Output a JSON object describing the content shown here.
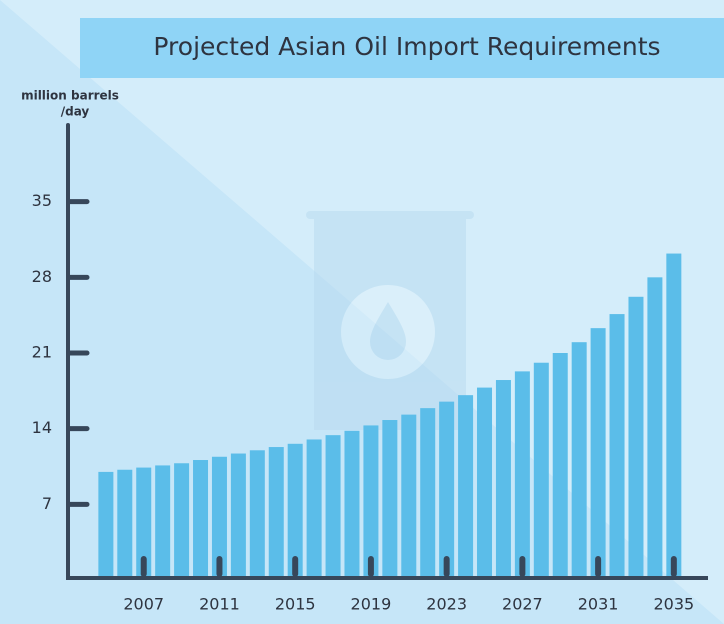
{
  "chart_data": {
    "type": "bar",
    "title": "Projected Asian Oil Import Requirements",
    "y_label": [
      "million barrels",
      "/day"
    ],
    "x": [
      2005,
      2006,
      2007,
      2008,
      2009,
      2010,
      2011,
      2012,
      2013,
      2014,
      2015,
      2016,
      2017,
      2018,
      2019,
      2020,
      2021,
      2022,
      2023,
      2024,
      2025,
      2026,
      2027,
      2028,
      2029,
      2030,
      2031,
      2032,
      2033,
      2034,
      2035
    ],
    "values": [
      10.0,
      10.2,
      10.4,
      10.6,
      10.8,
      11.1,
      11.4,
      11.7,
      12.0,
      12.3,
      12.6,
      13.0,
      13.4,
      13.8,
      14.3,
      14.8,
      15.3,
      15.9,
      16.5,
      17.1,
      17.8,
      18.5,
      19.3,
      20.1,
      21.0,
      22.0,
      23.3,
      24.6,
      26.2,
      28.0,
      30.2
    ],
    "color": "#5bbde9",
    "xlim": [
      2003,
      2037
    ],
    "xticks": [
      2007,
      2011,
      2015,
      2019,
      2023,
      2027,
      2031,
      2035
    ],
    "ylim": [
      0,
      42
    ],
    "yticks": [
      7,
      14,
      21,
      28,
      35
    ]
  }
}
